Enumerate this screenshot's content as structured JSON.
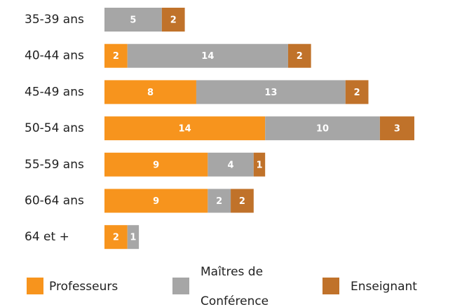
{
  "chart_data": {
    "type": "stacked-bar-horizontal",
    "categories": [
      "35-39 ans",
      "40-44 ans",
      "45-49 ans",
      "50-54 ans",
      "55-59 ans",
      "60-64 ans",
      "64 et +"
    ],
    "series": [
      {
        "name": "Professeurs",
        "color": "#f7941d",
        "values": [
          null,
          2,
          8,
          14,
          9,
          9,
          2
        ]
      },
      {
        "name": "Maîtres de Conférence",
        "color": "#a6a6a6",
        "values": [
          5,
          14,
          13,
          10,
          4,
          2,
          1
        ]
      },
      {
        "name": "Enseignant",
        "color": "#c0722a",
        "values": [
          2,
          2,
          2,
          3,
          1,
          2,
          null
        ]
      }
    ]
  }
}
